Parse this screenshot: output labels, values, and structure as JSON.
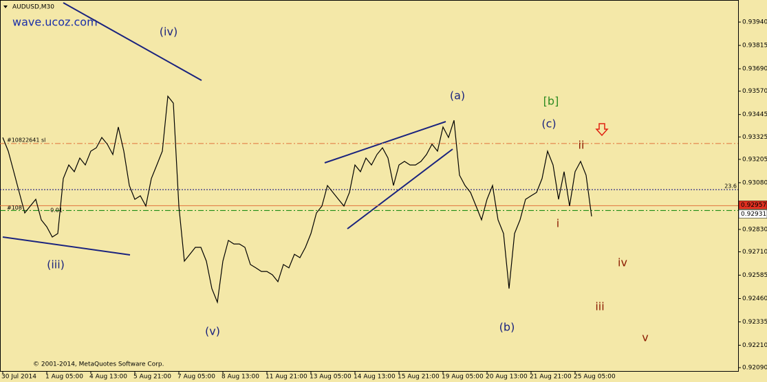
{
  "chart_data": {
    "type": "line",
    "title": "AUDUSD,M30",
    "watermark": "wave.ucoz.com",
    "copyright": "© 2001-2014, MetaQuotes Software Corp.",
    "color": "#000000",
    "categories": [
      "30 Jul 2014",
      null,
      null,
      null,
      null,
      null,
      null,
      null,
      "1 Aug 05:00",
      null,
      null,
      null,
      null,
      null,
      null,
      null,
      "4 Aug 13:00",
      null,
      null,
      null,
      null,
      null,
      null,
      null,
      "5 Aug 21:00",
      null,
      null,
      null,
      null,
      null,
      null,
      null,
      "7 Aug 05:00",
      null,
      null,
      null,
      null,
      null,
      null,
      null,
      "8 Aug 13:00",
      null,
      null,
      null,
      null,
      null,
      null,
      null,
      "11 Aug 21:00",
      null,
      null,
      null,
      null,
      null,
      null,
      null,
      "13 Aug 05:00",
      null,
      null,
      null,
      null,
      null,
      null,
      null,
      "14 Aug 13:00",
      null,
      null,
      null,
      null,
      null,
      null,
      null,
      "15 Aug 21:00",
      null,
      null,
      null,
      null,
      null,
      null,
      null,
      "19 Aug 05:00",
      null,
      null,
      null,
      null,
      null,
      null,
      null,
      "20 Aug 13:00",
      null,
      null,
      null,
      null,
      null,
      null,
      null,
      "21 Aug 21:00",
      null,
      null,
      null,
      null,
      null,
      null,
      null,
      "25 Aug 05:00",
      null,
      null,
      null
    ],
    "values": [
      0.93322,
      0.93249,
      0.93139,
      0.93028,
      0.92918,
      0.92955,
      0.92991,
      0.92881,
      0.92844,
      0.92789,
      0.92808,
      0.93102,
      0.93175,
      0.93139,
      0.93212,
      0.93175,
      0.93249,
      0.93267,
      0.93322,
      0.93286,
      0.93231,
      0.93378,
      0.93249,
      0.93065,
      0.92991,
      0.9301,
      0.92955,
      0.93102,
      0.93175,
      0.93249,
      0.93543,
      0.93506,
      0.92955,
      0.9266,
      0.92697,
      0.92734,
      0.92734,
      0.9266,
      0.92513,
      0.9244,
      0.9266,
      0.92771,
      0.92752,
      0.92752,
      0.92734,
      0.92642,
      0.92624,
      0.92605,
      0.92605,
      0.92587,
      0.9255,
      0.92642,
      0.92624,
      0.92697,
      0.92679,
      0.92734,
      0.92808,
      0.92918,
      0.92955,
      0.93065,
      0.93028,
      0.92991,
      0.92955,
      0.93028,
      0.93175,
      0.93139,
      0.93212,
      0.93175,
      0.93231,
      0.93267,
      0.93212,
      0.93065,
      0.93175,
      0.93194,
      0.93175,
      0.93175,
      0.93194,
      0.93231,
      0.93286,
      0.93249,
      0.93378,
      0.93322,
      0.93414,
      0.9312,
      0.93065,
      0.93028,
      0.92955,
      0.92881,
      0.92991,
      0.93065,
      0.92881,
      0.92808,
      0.92513,
      0.92808,
      0.92881,
      0.92991,
      0.9301,
      0.93028,
      0.93102,
      0.93249,
      0.93175,
      0.92991,
      0.93139,
      0.92955,
      0.93139,
      0.93194,
      0.9312,
      0.929
    ],
    "ylim": [
      0.92072,
      0.94058
    ],
    "yticks": [
      {
        "value": 0.9394,
        "label": "0.93940"
      },
      0.93815,
      {
        "value": 0.9369,
        "label": "0.93690"
      },
      {
        "value": 0.9357,
        "label": "0.93570"
      },
      0.93445,
      0.93325,
      0.93205,
      {
        "value": 0.9308,
        "label": "0.93080"
      },
      {
        "value": 0.9283,
        "label": "0.92830"
      },
      {
        "value": 0.9271,
        "label": "0.92710"
      },
      0.92585,
      {
        "value": 0.9246,
        "label": "0.92460"
      },
      0.92335,
      {
        "value": 0.9221,
        "label": "0.92210"
      },
      {
        "value": 0.9209,
        "label": "0.92090"
      }
    ],
    "grid": false,
    "levels": [
      {
        "value": 0.9329,
        "label": "#10822641 sl",
        "color": "#e0703a",
        "style": "dashdot"
      },
      {
        "value": 0.93043,
        "label": "23.6",
        "color": "#000080",
        "style": "dotted"
      },
      {
        "value": 0.92957,
        "color": "#e0703a",
        "style": "solid",
        "box": "#e03020"
      },
      {
        "value": 0.92931,
        "label": "#108",
        "color": "#008000",
        "style": "dashdot",
        "box": "#ffffff"
      }
    ],
    "annotations": [
      {
        "text": "(iv)",
        "color": "#1a237e"
      },
      {
        "text": "(iii)",
        "color": "#1a237e"
      },
      {
        "text": "(v)",
        "color": "#1a237e"
      },
      {
        "text": "(a)",
        "color": "#1a237e"
      },
      {
        "text": "(b)",
        "color": "#1a237e"
      },
      {
        "text": "(c)",
        "color": "#1a237e"
      },
      {
        "text": "[b]",
        "color": "#2e8b22"
      },
      {
        "text": "ii",
        "color": "#8b1a00"
      },
      {
        "text": "i",
        "color": "#8b1a00"
      },
      {
        "text": "iv",
        "color": "#8b1a00"
      },
      {
        "text": "iii",
        "color": "#8b1a00"
      },
      {
        "text": "v",
        "color": "#8b1a00"
      },
      {
        "text": "0.01",
        "color": "#000000"
      }
    ]
  }
}
